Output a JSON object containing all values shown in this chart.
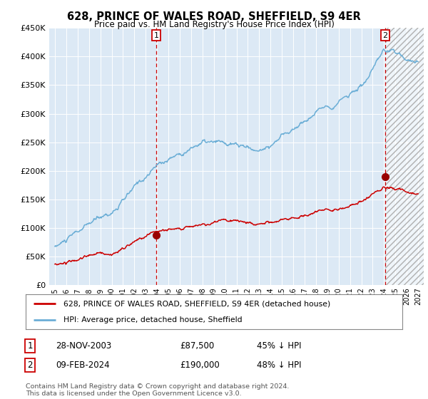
{
  "title": "628, PRINCE OF WALES ROAD, SHEFFIELD, S9 4ER",
  "subtitle": "Price paid vs. HM Land Registry's House Price Index (HPI)",
  "legend_line1": "628, PRINCE OF WALES ROAD, SHEFFIELD, S9 4ER (detached house)",
  "legend_line2": "HPI: Average price, detached house, Sheffield",
  "annotation1_label": "1",
  "annotation1_date": "28-NOV-2003",
  "annotation1_price": "£87,500",
  "annotation1_hpi": "45% ↓ HPI",
  "annotation2_label": "2",
  "annotation2_date": "09-FEB-2024",
  "annotation2_price": "£190,000",
  "annotation2_hpi": "48% ↓ HPI",
  "footer": "Contains HM Land Registry data © Crown copyright and database right 2024.\nThis data is licensed under the Open Government Licence v3.0.",
  "hpi_color": "#6baed6",
  "price_color": "#cc0000",
  "dot_color": "#990000",
  "vline_color": "#cc0000",
  "bg_color": "#dce9f5",
  "ylim": [
    0,
    450000
  ],
  "yticks": [
    0,
    50000,
    100000,
    150000,
    200000,
    250000,
    300000,
    350000,
    400000,
    450000
  ],
  "anno1_x": 2003.92,
  "anno1_y_price": 87500,
  "anno2_x": 2024.11,
  "anno2_y_price": 190000,
  "xmin": 1994.5,
  "xmax": 2027.5,
  "hatch_start": 2024.11,
  "hatch_end": 2027.5
}
